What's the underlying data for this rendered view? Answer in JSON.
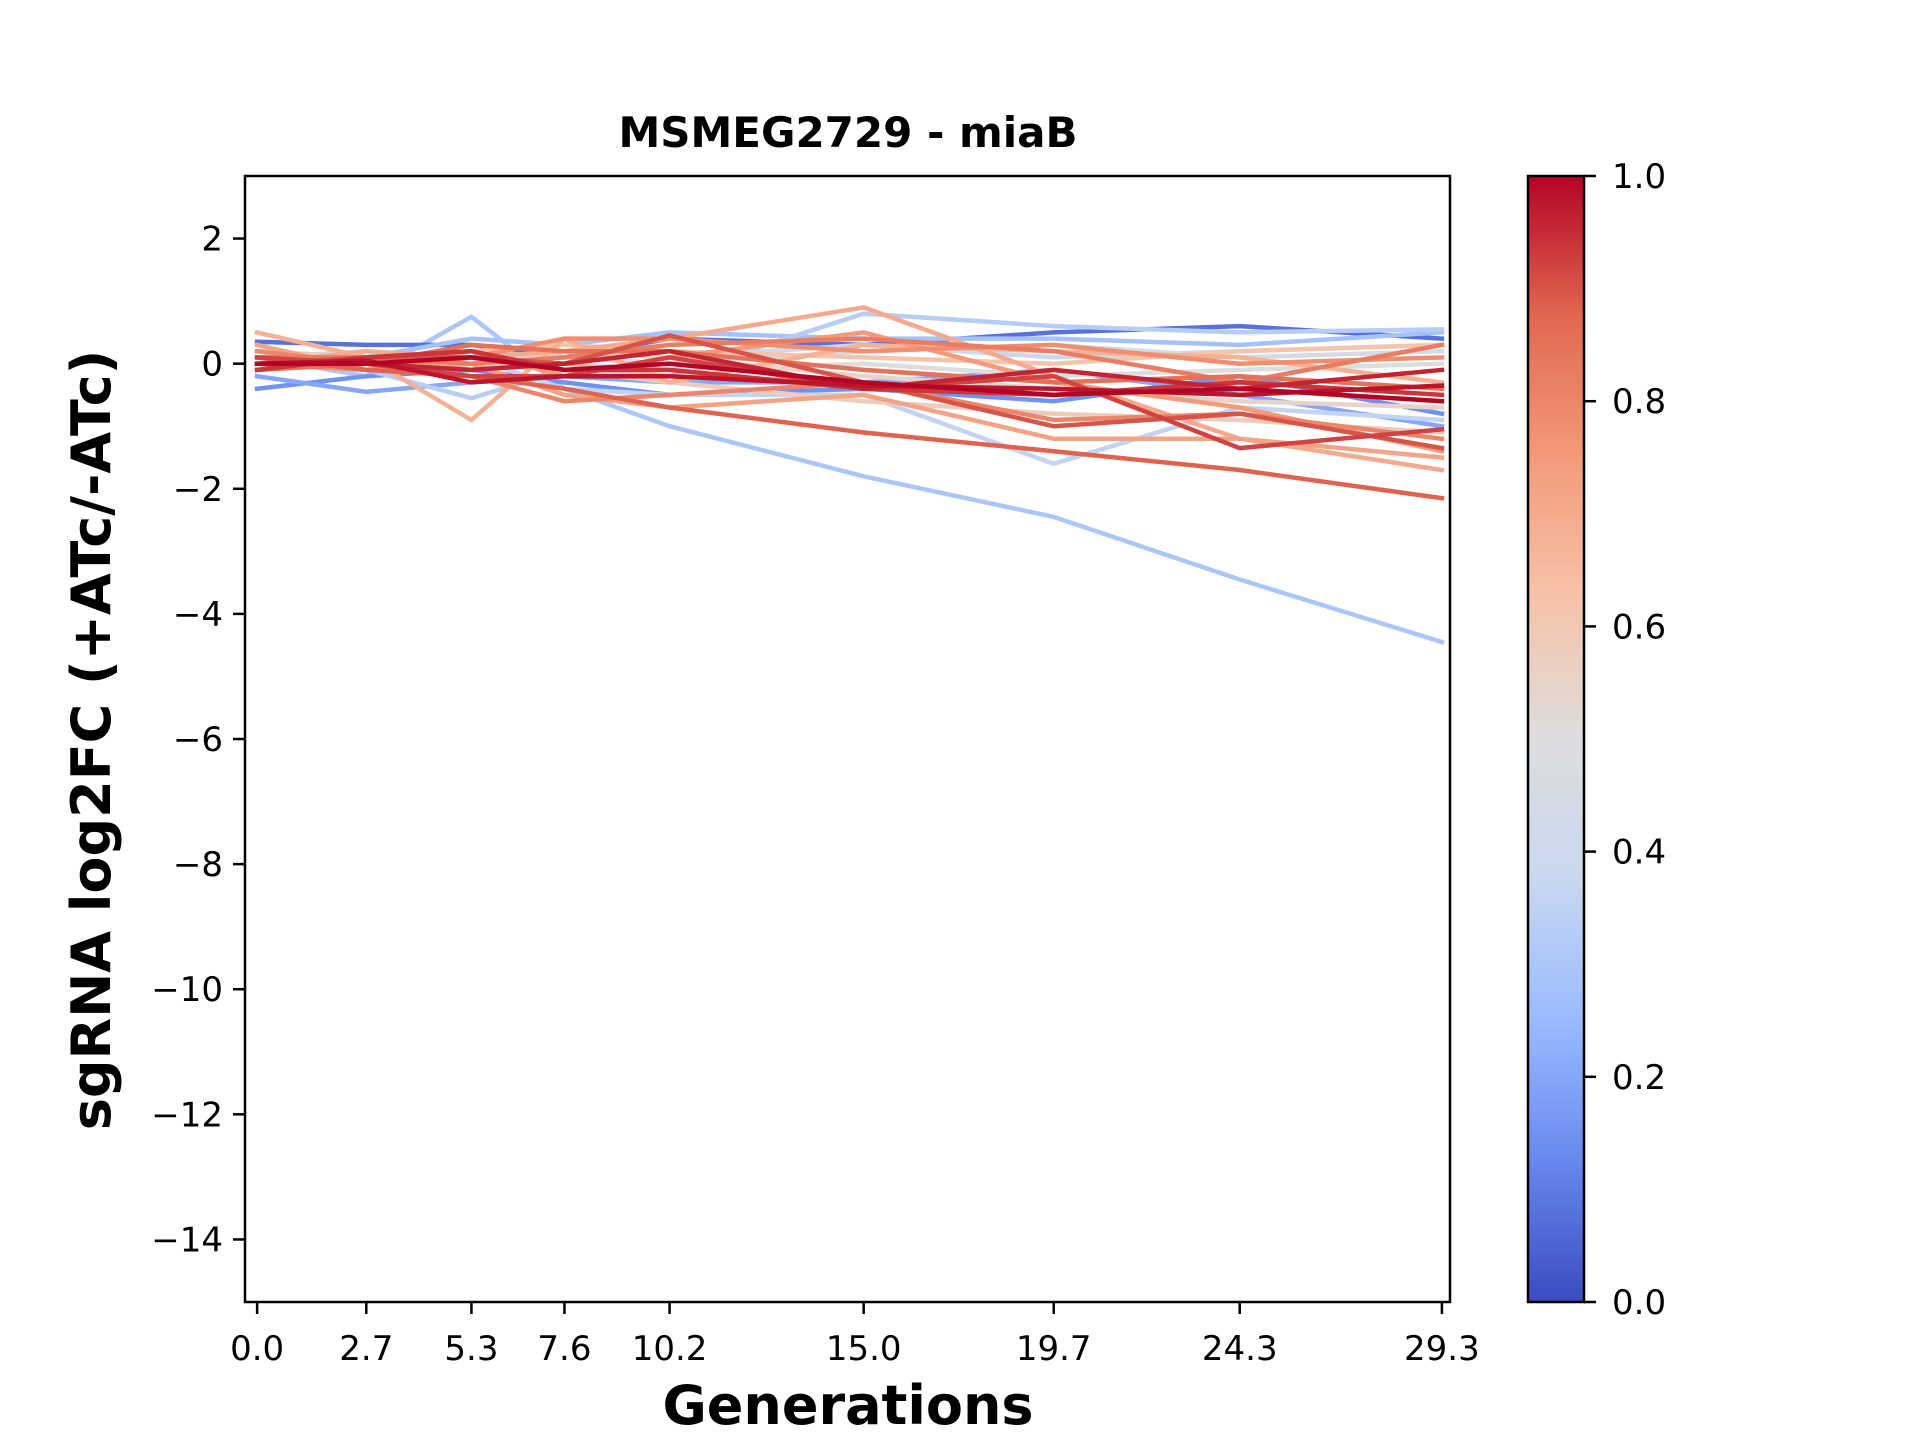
{
  "chart_data": {
    "type": "line",
    "title": "MSMEG2729 - miaB",
    "xlabel": "Generations",
    "ylabel": "sgRNA log2FC (+ATc/-ATc)",
    "x": [
      0.0,
      2.7,
      5.3,
      7.6,
      10.2,
      15.0,
      19.7,
      24.3,
      29.3
    ],
    "x_tick_labels": [
      "0.0",
      "2.7",
      "5.3",
      "7.6",
      "10.2",
      "15.0",
      "19.7",
      "24.3",
      "29.3"
    ],
    "xlim": [
      -0.3,
      29.5
    ],
    "ylim": [
      -15,
      3
    ],
    "y_ticks": [
      2,
      0,
      -2,
      -4,
      -6,
      -8,
      -10,
      -12,
      -14
    ],
    "y_tick_labels": [
      "2",
      "0",
      "−2",
      "−4",
      "−6",
      "−8",
      "−10",
      "−12",
      "−14"
    ],
    "grid": false,
    "legend": "none",
    "colorbar": {
      "colormap": "coolwarm",
      "range": [
        0.0,
        1.0
      ],
      "ticks": [
        0.0,
        0.2,
        0.4,
        0.6,
        0.8,
        1.0
      ],
      "tick_labels": [
        "0.0",
        "0.2",
        "0.4",
        "0.6",
        "0.8",
        "1.0"
      ],
      "stops": [
        "#3b4cc0",
        "#6788ee",
        "#9abbff",
        "#c9d7f0",
        "#dddddd",
        "#f6c3a9",
        "#f49a7b",
        "#e16751",
        "#b40426"
      ]
    },
    "series": [
      {
        "c": 0.3,
        "values": [
          0.1,
          -0.2,
          0.75,
          -0.4,
          -1.0,
          -1.8,
          -2.45,
          -3.45,
          -4.45
        ]
      },
      {
        "c": 0.08,
        "values": [
          0.35,
          0.3,
          0.3,
          0.1,
          0.4,
          0.3,
          0.5,
          0.6,
          0.4
        ]
      },
      {
        "c": 0.15,
        "values": [
          -0.4,
          -0.2,
          -0.1,
          -0.3,
          -0.5,
          -0.4,
          -0.6,
          -0.2,
          -0.8
        ]
      },
      {
        "c": 0.2,
        "values": [
          -0.2,
          -0.45,
          -0.3,
          -0.2,
          -0.3,
          -0.3,
          -0.1,
          -0.5,
          -1.0
        ]
      },
      {
        "c": 0.28,
        "values": [
          0.2,
          0.1,
          0.4,
          0.3,
          0.5,
          0.4,
          0.4,
          0.3,
          0.5
        ]
      },
      {
        "c": 0.33,
        "values": [
          0.0,
          -0.1,
          -0.55,
          -0.1,
          -0.2,
          0.8,
          0.6,
          0.5,
          0.55
        ]
      },
      {
        "c": 0.36,
        "values": [
          0.2,
          0.0,
          0.1,
          -0.4,
          -0.5,
          -0.5,
          -1.6,
          -0.7,
          -0.9
        ]
      },
      {
        "c": 0.4,
        "values": [
          0.1,
          0.2,
          0.0,
          0.2,
          0.1,
          0.3,
          0.1,
          0.2,
          0.3
        ]
      },
      {
        "c": 0.45,
        "values": [
          0.0,
          0.1,
          0.2,
          0.1,
          0.0,
          0.2,
          0.3,
          0.1,
          0.2
        ]
      },
      {
        "c": 0.5,
        "values": [
          0.1,
          0.0,
          0.1,
          0.0,
          -0.1,
          0.0,
          -0.2,
          -0.1,
          0.0
        ]
      },
      {
        "c": 0.55,
        "values": [
          0.0,
          0.1,
          -0.1,
          0.2,
          0.1,
          -0.2,
          -0.4,
          -0.6,
          -0.7
        ]
      },
      {
        "c": 0.58,
        "values": [
          0.2,
          0.1,
          0.0,
          -0.1,
          -0.3,
          -0.6,
          -0.8,
          -0.9,
          -1.1
        ]
      },
      {
        "c": 0.62,
        "values": [
          0.1,
          0.0,
          0.2,
          0.3,
          0.2,
          0.1,
          0.0,
          0.2,
          0.3
        ]
      },
      {
        "c": 0.65,
        "values": [
          -0.1,
          0.0,
          0.1,
          0.0,
          -0.2,
          -0.3,
          -0.5,
          -0.4,
          -0.6
        ]
      },
      {
        "c": 0.68,
        "values": [
          0.5,
          0.1,
          -0.9,
          0.4,
          -0.3,
          0.3,
          0.2,
          0.1,
          -0.3
        ]
      },
      {
        "c": 0.7,
        "values": [
          0.0,
          0.2,
          0.1,
          0.2,
          0.4,
          0.9,
          -0.2,
          -1.2,
          -1.7
        ]
      },
      {
        "c": 0.72,
        "values": [
          0.3,
          -0.1,
          0.0,
          -0.5,
          -0.7,
          -0.5,
          -1.2,
          -1.2,
          -1.5
        ]
      },
      {
        "c": 0.75,
        "values": [
          0.1,
          0.0,
          0.2,
          -0.2,
          0.1,
          0.5,
          -0.3,
          -0.7,
          -1.4
        ]
      },
      {
        "c": 0.78,
        "values": [
          0.0,
          -0.1,
          0.1,
          0.4,
          0.4,
          0.2,
          0.3,
          0.0,
          0.1
        ]
      },
      {
        "c": 0.8,
        "values": [
          0.2,
          0.0,
          -0.2,
          -0.6,
          -0.5,
          -0.3,
          -0.9,
          -0.8,
          -1.2
        ]
      },
      {
        "c": 0.82,
        "values": [
          0.1,
          0.1,
          0.0,
          0.1,
          0.3,
          0.4,
          0.2,
          -0.3,
          0.3
        ]
      },
      {
        "c": 0.85,
        "values": [
          -0.1,
          0.0,
          0.3,
          0.2,
          0.2,
          -0.1,
          -0.3,
          -0.2,
          -0.4
        ]
      },
      {
        "c": 0.88,
        "values": [
          0.1,
          -0.1,
          -0.2,
          -0.4,
          -0.7,
          -1.1,
          -1.4,
          -1.7,
          -2.15
        ]
      },
      {
        "c": 0.9,
        "values": [
          0.0,
          0.1,
          0.1,
          0.0,
          0.45,
          -0.3,
          -1.0,
          -0.8,
          -1.35
        ]
      },
      {
        "c": 0.92,
        "values": [
          0.1,
          0.0,
          -0.2,
          -0.2,
          0.1,
          -0.4,
          -0.2,
          -1.35,
          -1.05
        ]
      },
      {
        "c": 0.94,
        "values": [
          -0.1,
          0.1,
          0.2,
          -0.1,
          -0.1,
          -0.4,
          -0.5,
          -0.3,
          -0.5
        ]
      },
      {
        "c": 0.96,
        "values": [
          0.0,
          0.0,
          -0.1,
          0.0,
          0.2,
          -0.4,
          -0.1,
          -0.4,
          -0.1
        ]
      },
      {
        "c": 0.98,
        "values": [
          0.0,
          0.05,
          -0.3,
          -0.2,
          -0.2,
          -0.35,
          -0.4,
          -0.5,
          -0.35
        ]
      },
      {
        "c": 1.0,
        "values": [
          0.0,
          0.0,
          0.1,
          -0.1,
          0.0,
          -0.3,
          -0.5,
          -0.4,
          -0.6
        ]
      }
    ]
  }
}
